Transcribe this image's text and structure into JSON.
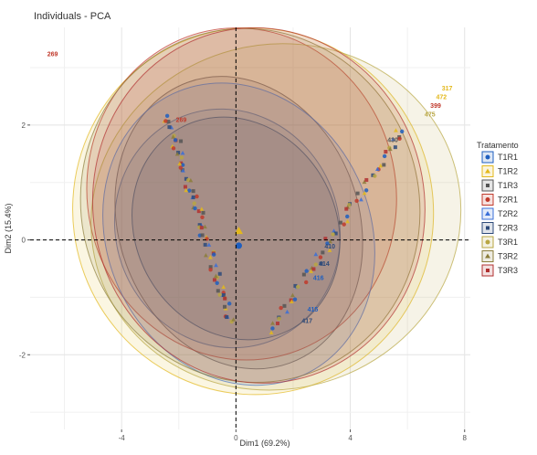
{
  "chart_data": {
    "type": "scatter",
    "title": "Individuals - PCA",
    "xlabel": "Dim1 (69.2%)",
    "ylabel": "Dim2 (15.4%)",
    "xlim": [
      -7.2,
      8.2
    ],
    "ylim": [
      -3.3,
      3.7
    ],
    "x_ticks": [
      -4,
      0,
      4,
      8
    ],
    "y_ticks": [
      2,
      0,
      -2
    ],
    "x_tick_labels": [
      "-4",
      "0",
      "4",
      "8"
    ],
    "y_tick_labels": [
      "2",
      "0",
      "-2"
    ],
    "grid": true,
    "legend": {
      "title": "Tratamento",
      "placement": "right",
      "entries": [
        {
          "label": "T1R1",
          "color": "#1f5fbf"
        },
        {
          "label": "T1R2",
          "color": "#e3b81c"
        },
        {
          "label": "T1R3",
          "color": "#555555"
        },
        {
          "label": "T2R1",
          "color": "#c0392b"
        },
        {
          "label": "T2R2",
          "color": "#3a6fd8"
        },
        {
          "label": "T2R3",
          "color": "#2d4a7a"
        },
        {
          "label": "T3R1",
          "color": "#b8a642"
        },
        {
          "label": "T3R2",
          "color": "#8b7d3a"
        },
        {
          "label": "T3R3",
          "color": "#b03030"
        }
      ]
    },
    "ellipses": [
      {
        "group": "T1R1",
        "cx": -0.3,
        "cy": 0.2,
        "rx": 3.9,
        "ry": 2.1,
        "angle": -22,
        "color": "#1f5fbf"
      },
      {
        "group": "T1R2",
        "cx": 0.6,
        "cy": 0.5,
        "rx": 6.3,
        "ry": 3.2,
        "angle": -18,
        "color": "#e3b81c"
      },
      {
        "group": "T1R3",
        "cx": 0.1,
        "cy": 0.3,
        "rx": 4.2,
        "ry": 2.6,
        "angle": -20,
        "color": "#555555"
      },
      {
        "group": "T2R1",
        "cx": 0.2,
        "cy": 0.8,
        "rx": 5.4,
        "ry": 2.9,
        "angle": -12,
        "color": "#c0392b"
      },
      {
        "group": "T2R2",
        "cx": 0.1,
        "cy": 0.1,
        "rx": 4.6,
        "ry": 2.7,
        "angle": -25,
        "color": "#3a6fd8"
      },
      {
        "group": "T2R3",
        "cx": 0.0,
        "cy": 0.2,
        "rx": 3.5,
        "ry": 2.0,
        "angle": -30,
        "color": "#2d4a7a"
      },
      {
        "group": "T3R1",
        "cx": 1.4,
        "cy": 0.4,
        "rx": 6.5,
        "ry": 3.0,
        "angle": -15,
        "color": "#b8a642"
      },
      {
        "group": "T3R2",
        "cx": 0.5,
        "cy": 0.6,
        "rx": 5.9,
        "ry": 3.1,
        "angle": -20,
        "color": "#8b7d3a"
      },
      {
        "group": "T3R3",
        "cx": 0.8,
        "cy": 0.6,
        "rx": 5.8,
        "ry": 3.1,
        "angle": -10,
        "color": "#b03030"
      }
    ],
    "centroids": [
      {
        "group": "T1R1",
        "x": 0.1,
        "y": -0.1,
        "color": "#1f5fbf"
      },
      {
        "group": "T1R2",
        "x": 0.1,
        "y": 0.15,
        "color": "#e3b81c"
      }
    ],
    "point_labels": [
      {
        "text": "269",
        "x": -6.6,
        "y": 3.2,
        "color": "#c0392b"
      },
      {
        "text": "269",
        "x": -2.1,
        "y": 2.05,
        "color": "#c0392b"
      },
      {
        "text": "317",
        "x": 7.2,
        "y": 2.6,
        "color": "#e3b81c"
      },
      {
        "text": "472",
        "x": 7.0,
        "y": 2.45,
        "color": "#e3b81c"
      },
      {
        "text": "399",
        "x": 6.8,
        "y": 2.3,
        "color": "#c0392b"
      },
      {
        "text": "475",
        "x": 6.6,
        "y": 2.15,
        "color": "#b8a642"
      },
      {
        "text": "430",
        "x": 5.3,
        "y": 1.7,
        "color": "#555555"
      },
      {
        "text": "417",
        "x": 2.3,
        "y": -1.45,
        "color": "#2d4a7a"
      },
      {
        "text": "415",
        "x": 2.5,
        "y": -1.25,
        "color": "#1f5fbf"
      },
      {
        "text": "416",
        "x": 2.7,
        "y": -0.7,
        "color": "#1f5fbf"
      },
      {
        "text": "414",
        "x": 2.9,
        "y": -0.45,
        "color": "#2d4a7a"
      },
      {
        "text": "410",
        "x": 3.1,
        "y": -0.15,
        "color": "#2d4a7a"
      }
    ],
    "bands": [
      {
        "name": "left",
        "from": [
          -2.4,
          2.15
        ],
        "to": [
          -0.1,
          -1.45
        ],
        "count": 80
      },
      {
        "name": "right",
        "from": [
          5.8,
          1.9
        ],
        "to": [
          1.2,
          -1.6
        ],
        "count": 65
      }
    ],
    "band_colors": [
      "#1f5fbf",
      "#e3b81c",
      "#555555",
      "#c0392b",
      "#3a6fd8",
      "#2d4a7a",
      "#b8a642",
      "#8b7d3a",
      "#b03030"
    ]
  }
}
